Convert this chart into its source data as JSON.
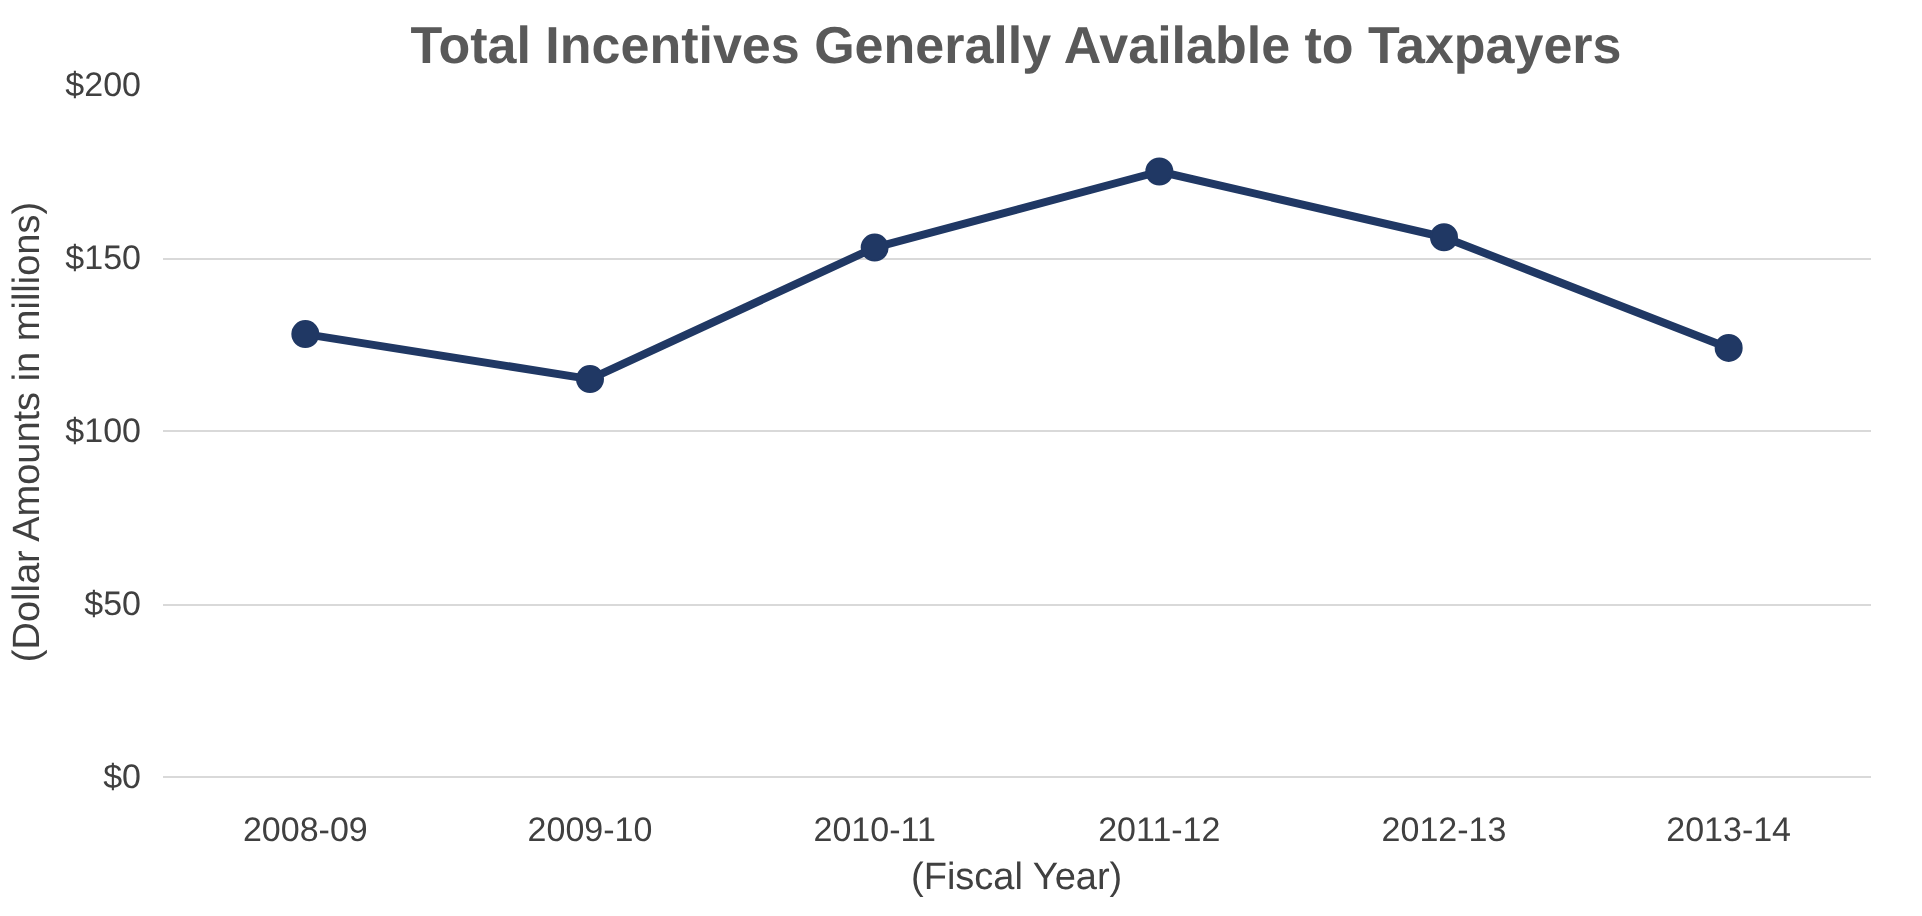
{
  "chart_data": {
    "type": "line",
    "title": "Total Incentives Generally Available to Taxpayers",
    "xlabel": "(Fiscal Year)",
    "ylabel": "(Dollar Amounts in millions)",
    "categories": [
      "2008-09",
      "2009-10",
      "2010-11",
      "2011-12",
      "2012-13",
      "2013-14"
    ],
    "series": [
      {
        "color": "#203864",
        "values": [
          128,
          115,
          153,
          175,
          156,
          124
        ]
      }
    ],
    "ylim": [
      0,
      200
    ],
    "yticks": [
      {
        "value": 0,
        "label": "$0"
      },
      {
        "value": 50,
        "label": "$50"
      },
      {
        "value": 100,
        "label": "$100"
      },
      {
        "value": 150,
        "label": "$150"
      },
      {
        "value": 200,
        "label": "$200"
      }
    ],
    "grid": "y",
    "marker": "circle",
    "line_style": "solid"
  }
}
